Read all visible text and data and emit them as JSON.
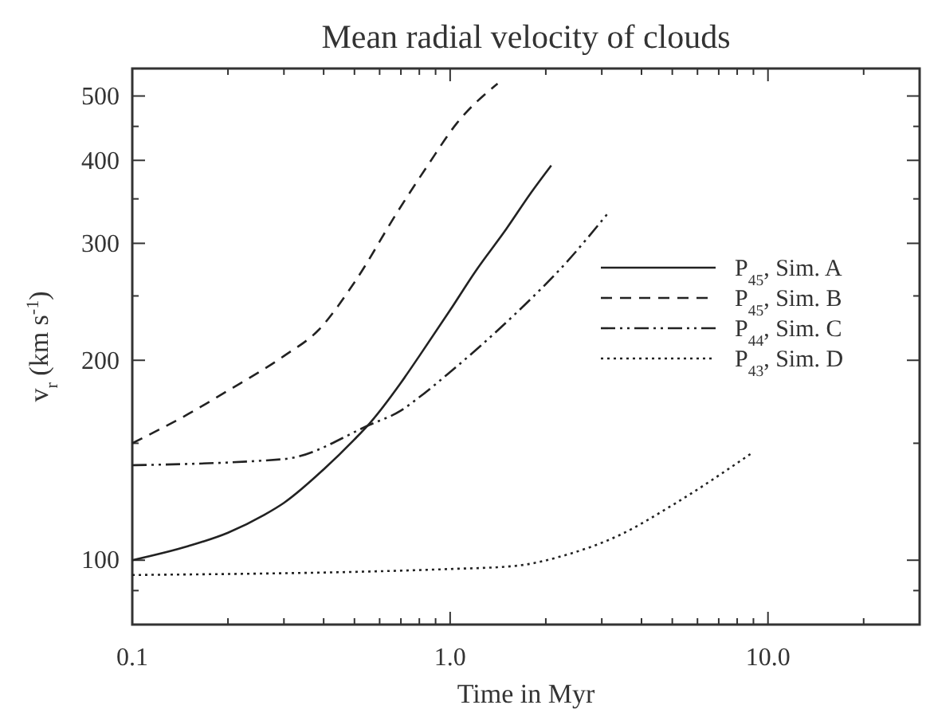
{
  "chart_data": {
    "type": "line",
    "title": "Mean radial velocity of clouds",
    "xlabel": "Time in Myr",
    "ylabel": "v$_{r}$ (km s$^{-1}$)",
    "log": "xy",
    "xlim": [
      0.1,
      30
    ],
    "ylim": [
      80,
      550
    ],
    "xticks": [
      {
        "value": 0.1,
        "label": "0.1"
      },
      {
        "value": 0.2,
        "label": null
      },
      {
        "value": 0.3,
        "label": null
      },
      {
        "value": 0.4,
        "label": null
      },
      {
        "value": 0.5,
        "label": null
      },
      {
        "value": 0.6,
        "label": null
      },
      {
        "value": 0.7,
        "label": null
      },
      {
        "value": 0.8,
        "label": null
      },
      {
        "value": 0.9,
        "label": null
      },
      {
        "value": 1,
        "label": "1.0"
      },
      {
        "value": 2,
        "label": null
      },
      {
        "value": 3,
        "label": null
      },
      {
        "value": 4,
        "label": null
      },
      {
        "value": 5,
        "label": null
      },
      {
        "value": 6,
        "label": null
      },
      {
        "value": 7,
        "label": null
      },
      {
        "value": 8,
        "label": null
      },
      {
        "value": 9,
        "label": null
      },
      {
        "value": 10,
        "label": "10.0"
      },
      {
        "value": 20,
        "label": null
      }
    ],
    "yticks": [
      {
        "value": 90,
        "label": null
      },
      100,
      {
        "value": 150,
        "label": null
      },
      200,
      {
        "value": 250,
        "label": null
      },
      300,
      {
        "value": 350,
        "label": null
      },
      400,
      {
        "value": 450,
        "label": null
      },
      500
    ],
    "legend": "right",
    "grid": false,
    "marker": "none",
    "series": [
      {
        "name": "P$_{45}$, Sim. A",
        "color": "#222222",
        "line_style": "solid",
        "x": [
          0.1,
          0.15,
          0.2,
          0.26,
          0.3,
          0.4,
          0.5,
          0.56,
          0.7,
          0.8,
          1.0,
          1.2,
          1.5,
          1.8,
          2.08
        ],
        "values": [
          100,
          105,
          110,
          117,
          122,
          137,
          152,
          161,
          185,
          203,
          238,
          272,
          315,
          358,
          393
        ]
      },
      {
        "name": "P$_{45}$, Sim. B",
        "color": "#222222",
        "line_style": "dashed",
        "x": [
          0.1,
          0.15,
          0.2,
          0.3,
          0.385,
          0.5,
          0.684,
          0.85,
          1.05,
          1.41
        ],
        "values": [
          150,
          166,
          180,
          203,
          222,
          262,
          335,
          393,
          455,
          522
        ]
      },
      {
        "name": "P$_{44}$, Sim. C",
        "color": "#222222",
        "line_style": "dashdot",
        "x": [
          0.1,
          0.3,
          0.56,
          0.7,
          0.8,
          1.0,
          1.59,
          2.34,
          3.12
        ],
        "values": [
          139,
          142,
          160,
          168,
          176,
          192,
          234,
          282,
          332
        ]
      },
      {
        "name": "P$_{43}$, Sim. D",
        "color": "#222222",
        "line_style": "dotted",
        "x": [
          0.1,
          1.0,
          1.59,
          2.34,
          3.4,
          5.0,
          8.9
        ],
        "values": [
          95,
          97,
          98,
          102,
          109,
          121,
          145
        ]
      }
    ]
  }
}
